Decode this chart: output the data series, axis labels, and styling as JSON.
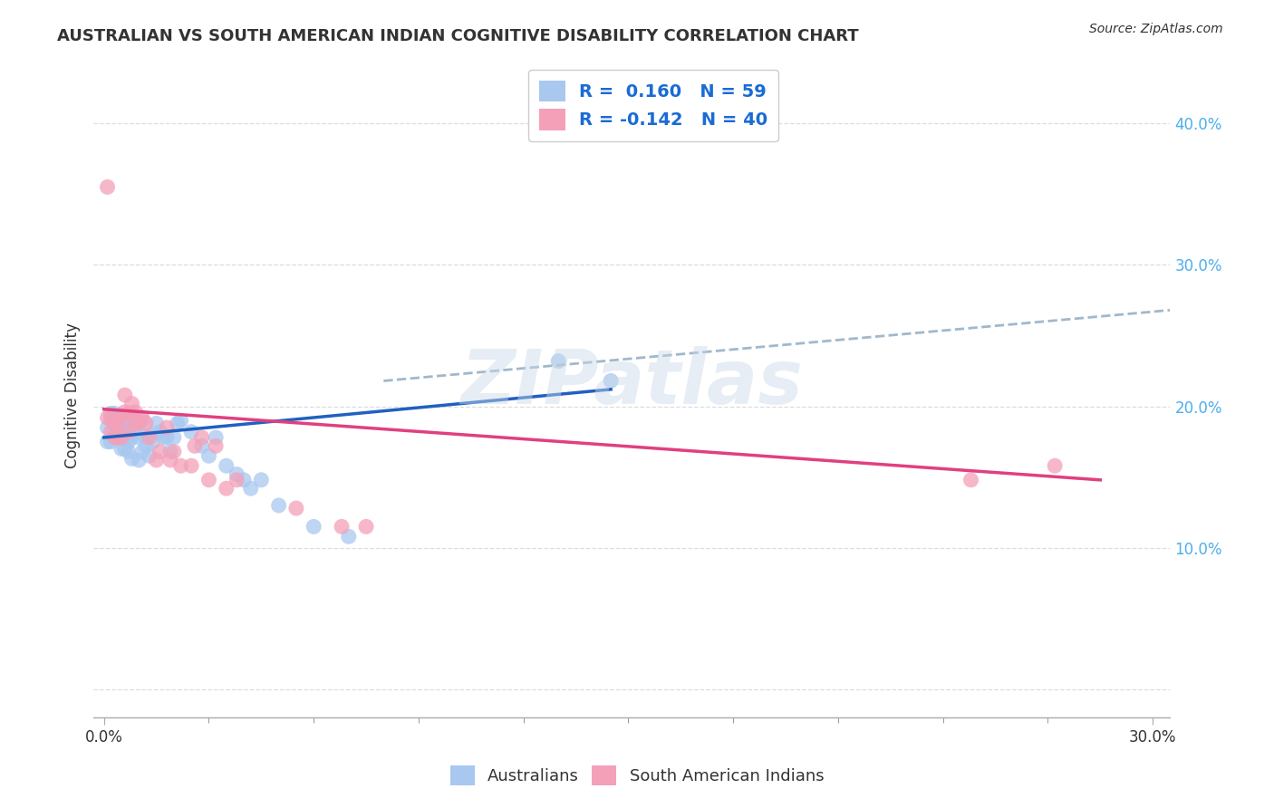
{
  "title": "AUSTRALIAN VS SOUTH AMERICAN INDIAN COGNITIVE DISABILITY CORRELATION CHART",
  "source": "Source: ZipAtlas.com",
  "ylabel": "Cognitive Disability",
  "xlim": [
    -0.003,
    0.305
  ],
  "ylim": [
    -0.02,
    0.435
  ],
  "watermark": "ZIPatlas",
  "blue_color": "#A8C8F0",
  "pink_color": "#F4A0B8",
  "blue_line_color": "#2060C0",
  "pink_line_color": "#E04080",
  "dashed_line_color": "#A0B8CC",
  "au_scatter_x": [
    0.001,
    0.001,
    0.002,
    0.002,
    0.002,
    0.003,
    0.003,
    0.003,
    0.003,
    0.004,
    0.004,
    0.004,
    0.005,
    0.005,
    0.005,
    0.005,
    0.006,
    0.006,
    0.006,
    0.006,
    0.007,
    0.007,
    0.007,
    0.007,
    0.008,
    0.008,
    0.009,
    0.009,
    0.01,
    0.01,
    0.011,
    0.011,
    0.012,
    0.012,
    0.013,
    0.013,
    0.014,
    0.015,
    0.016,
    0.017,
    0.018,
    0.019,
    0.02,
    0.021,
    0.022,
    0.025,
    0.028,
    0.03,
    0.032,
    0.035,
    0.038,
    0.04,
    0.042,
    0.045,
    0.05,
    0.06,
    0.07,
    0.13,
    0.145
  ],
  "au_scatter_y": [
    0.175,
    0.185,
    0.19,
    0.195,
    0.175,
    0.183,
    0.19,
    0.185,
    0.195,
    0.185,
    0.192,
    0.18,
    0.17,
    0.178,
    0.185,
    0.19,
    0.17,
    0.178,
    0.185,
    0.192,
    0.168,
    0.175,
    0.182,
    0.19,
    0.163,
    0.178,
    0.182,
    0.19,
    0.162,
    0.178,
    0.168,
    0.19,
    0.172,
    0.178,
    0.165,
    0.18,
    0.175,
    0.188,
    0.182,
    0.178,
    0.178,
    0.168,
    0.178,
    0.188,
    0.19,
    0.182,
    0.172,
    0.165,
    0.178,
    0.158,
    0.152,
    0.148,
    0.142,
    0.148,
    0.13,
    0.115,
    0.108,
    0.232,
    0.218
  ],
  "sa_scatter_x": [
    0.001,
    0.001,
    0.002,
    0.002,
    0.003,
    0.003,
    0.004,
    0.004,
    0.005,
    0.005,
    0.006,
    0.006,
    0.007,
    0.007,
    0.008,
    0.008,
    0.009,
    0.009,
    0.01,
    0.011,
    0.012,
    0.013,
    0.015,
    0.016,
    0.018,
    0.019,
    0.02,
    0.022,
    0.025,
    0.026,
    0.028,
    0.03,
    0.032,
    0.035,
    0.038,
    0.055,
    0.068,
    0.075,
    0.248,
    0.272
  ],
  "sa_scatter_y": [
    0.192,
    0.355,
    0.182,
    0.192,
    0.178,
    0.188,
    0.178,
    0.188,
    0.178,
    0.192,
    0.196,
    0.208,
    0.182,
    0.195,
    0.195,
    0.202,
    0.188,
    0.196,
    0.188,
    0.192,
    0.188,
    0.178,
    0.162,
    0.168,
    0.185,
    0.162,
    0.168,
    0.158,
    0.158,
    0.172,
    0.178,
    0.148,
    0.172,
    0.142,
    0.148,
    0.128,
    0.115,
    0.115,
    0.148,
    0.158
  ],
  "au_line_x": [
    0.0,
    0.145
  ],
  "au_line_y": [
    0.178,
    0.212
  ],
  "sa_line_x": [
    0.0,
    0.285
  ],
  "sa_line_y": [
    0.198,
    0.148
  ],
  "dashed_line_x": [
    0.08,
    0.305
  ],
  "dashed_line_y": [
    0.218,
    0.268
  ],
  "xtick_positions": [
    0.0,
    0.3
  ],
  "xtick_labels": [
    "0.0%",
    "30.0%"
  ],
  "ytick_right_positions": [
    0.1,
    0.2,
    0.3,
    0.4
  ],
  "ytick_right_labels": [
    "10.0%",
    "20.0%",
    "30.0%",
    "40.0%"
  ],
  "grid_color": "#DDDDDD",
  "bg_color": "#FFFFFF",
  "title_color": "#333333",
  "label_color": "#333333",
  "right_tick_color": "#4DAEEE"
}
